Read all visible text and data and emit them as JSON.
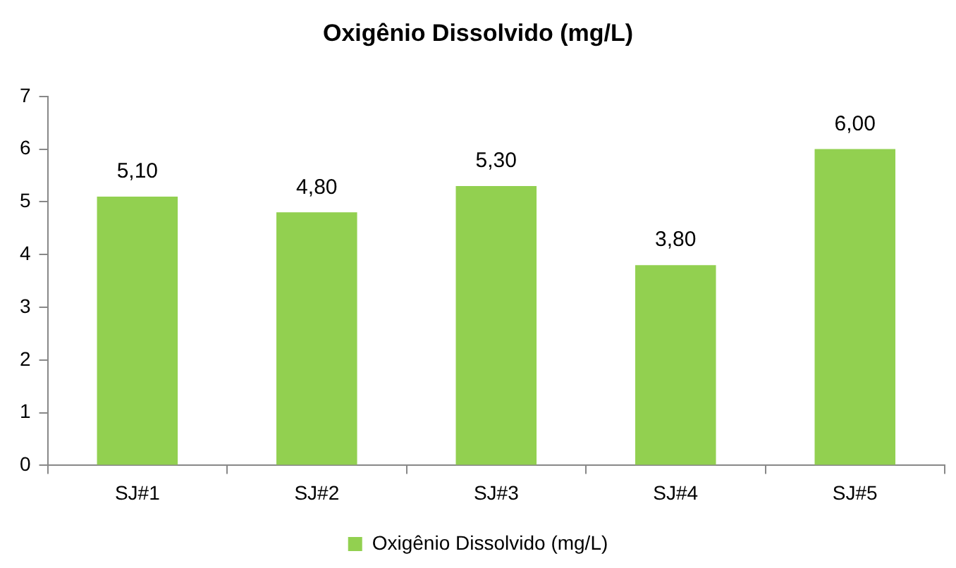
{
  "chart_data": {
    "type": "bar",
    "title": "Oxigênio Dissolvido (mg/L)",
    "categories": [
      "SJ#1",
      "SJ#2",
      "SJ#3",
      "SJ#4",
      "SJ#5"
    ],
    "series": [
      {
        "name": "Oxigênio Dissolvido (mg/L)",
        "color": "#92d050",
        "values": [
          5.1,
          4.8,
          5.3,
          3.8,
          6.0
        ],
        "value_labels": [
          "5,10",
          "4,80",
          "5,30",
          "3,80",
          "6,00"
        ]
      }
    ],
    "ylim": [
      0,
      7
    ],
    "yticks": [
      0,
      1,
      2,
      3,
      4,
      5,
      6,
      7
    ],
    "legend": "bottom"
  }
}
